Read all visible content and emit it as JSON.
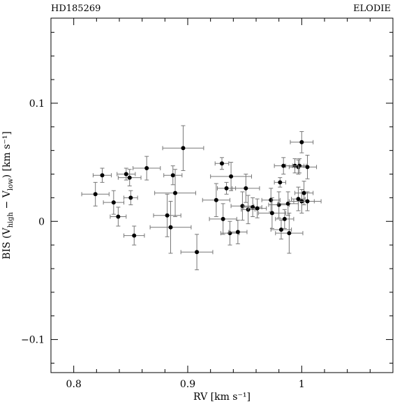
{
  "chart_data": {
    "type": "scatter",
    "title_left": "HD185269",
    "title_right": "ELODIE",
    "xlabel": "RV [km s⁻¹]",
    "ylabel_parts": {
      "prefix": "BIS (V",
      "sub1": "high",
      "mid": " − V",
      "sub2": "low",
      "suffix": ") [km s⁻¹]"
    },
    "xlim": [
      0.78,
      1.08
    ],
    "ylim": [
      -0.128,
      0.172
    ],
    "x_ticks": [
      0.8,
      0.9,
      1.0
    ],
    "x_tick_labels": [
      "0.8",
      "0.9",
      "1"
    ],
    "y_ticks": [
      -0.1,
      0.0,
      0.1
    ],
    "y_tick_labels": [
      "−0.1",
      "0",
      "0.1"
    ],
    "grid": false,
    "error_bars": true,
    "points": [
      {
        "x": 0.819,
        "y": 0.023,
        "ex": 0.012,
        "ey": 0.01
      },
      {
        "x": 0.825,
        "y": 0.039,
        "ex": 0.008,
        "ey": 0.006
      },
      {
        "x": 0.835,
        "y": 0.016,
        "ex": 0.009,
        "ey": 0.01
      },
      {
        "x": 0.839,
        "y": 0.004,
        "ex": 0.007,
        "ey": 0.008
      },
      {
        "x": 0.846,
        "y": 0.04,
        "ex": 0.008,
        "ey": 0.005
      },
      {
        "x": 0.849,
        "y": 0.037,
        "ex": 0.01,
        "ey": 0.007
      },
      {
        "x": 0.85,
        "y": 0.02,
        "ex": 0.006,
        "ey": 0.006
      },
      {
        "x": 0.853,
        "y": -0.012,
        "ex": 0.009,
        "ey": 0.008
      },
      {
        "x": 0.864,
        "y": 0.045,
        "ex": 0.012,
        "ey": 0.01
      },
      {
        "x": 0.882,
        "y": 0.005,
        "ex": 0.012,
        "ey": 0.018
      },
      {
        "x": 0.885,
        "y": -0.005,
        "ex": 0.018,
        "ey": 0.022
      },
      {
        "x": 0.887,
        "y": 0.039,
        "ex": 0.008,
        "ey": 0.008
      },
      {
        "x": 0.889,
        "y": 0.024,
        "ex": 0.018,
        "ey": 0.02
      },
      {
        "x": 0.896,
        "y": 0.062,
        "ex": 0.018,
        "ey": 0.019
      },
      {
        "x": 0.908,
        "y": -0.026,
        "ex": 0.014,
        "ey": 0.015
      },
      {
        "x": 0.925,
        "y": 0.018,
        "ex": 0.012,
        "ey": 0.014
      },
      {
        "x": 0.93,
        "y": 0.049,
        "ex": 0.006,
        "ey": 0.005
      },
      {
        "x": 0.931,
        "y": 0.002,
        "ex": 0.012,
        "ey": 0.013
      },
      {
        "x": 0.934,
        "y": 0.028,
        "ex": 0.008,
        "ey": 0.005
      },
      {
        "x": 0.937,
        "y": -0.01,
        "ex": 0.008,
        "ey": 0.01
      },
      {
        "x": 0.938,
        "y": 0.038,
        "ex": 0.018,
        "ey": 0.012
      },
      {
        "x": 0.944,
        "y": -0.009,
        "ex": 0.008,
        "ey": 0.01
      },
      {
        "x": 0.948,
        "y": 0.013,
        "ex": 0.01,
        "ey": 0.012
      },
      {
        "x": 0.951,
        "y": 0.028,
        "ex": 0.012,
        "ey": 0.012
      },
      {
        "x": 0.953,
        "y": 0.01,
        "ex": 0.006,
        "ey": 0.012
      },
      {
        "x": 0.957,
        "y": 0.012,
        "ex": 0.008,
        "ey": 0.008
      },
      {
        "x": 0.961,
        "y": 0.011,
        "ex": 0.008,
        "ey": 0.008
      },
      {
        "x": 0.973,
        "y": 0.018,
        "ex": 0.008,
        "ey": 0.01
      },
      {
        "x": 0.974,
        "y": 0.007,
        "ex": 0.012,
        "ey": 0.013
      },
      {
        "x": 0.98,
        "y": 0.014,
        "ex": 0.009,
        "ey": 0.011
      },
      {
        "x": 0.981,
        "y": 0.033,
        "ex": 0.005,
        "ey": 0.004
      },
      {
        "x": 0.982,
        "y": -0.007,
        "ex": 0.009,
        "ey": 0.008
      },
      {
        "x": 0.984,
        "y": 0.047,
        "ex": 0.008,
        "ey": 0.007
      },
      {
        "x": 0.985,
        "y": 0.002,
        "ex": 0.008,
        "ey": 0.008
      },
      {
        "x": 0.988,
        "y": 0.015,
        "ex": 0.009,
        "ey": 0.01
      },
      {
        "x": 0.989,
        "y": -0.01,
        "ex": 0.012,
        "ey": 0.017
      },
      {
        "x": 0.994,
        "y": 0.047,
        "ex": 0.008,
        "ey": 0.006
      },
      {
        "x": 0.997,
        "y": 0.046,
        "ex": 0.008,
        "ey": 0.006
      },
      {
        "x": 0.997,
        "y": 0.019,
        "ex": 0.006,
        "ey": 0.01
      },
      {
        "x": 0.998,
        "y": 0.047,
        "ex": 0.006,
        "ey": 0.006
      },
      {
        "x": 1.0,
        "y": 0.067,
        "ex": 0.01,
        "ey": 0.009
      },
      {
        "x": 1.0,
        "y": 0.017,
        "ex": 0.011,
        "ey": 0.01
      },
      {
        "x": 1.002,
        "y": 0.024,
        "ex": 0.008,
        "ey": 0.01
      },
      {
        "x": 1.005,
        "y": 0.046,
        "ex": 0.008,
        "ey": 0.01
      },
      {
        "x": 1.005,
        "y": 0.017,
        "ex": 0.012,
        "ey": 0.008
      }
    ]
  }
}
